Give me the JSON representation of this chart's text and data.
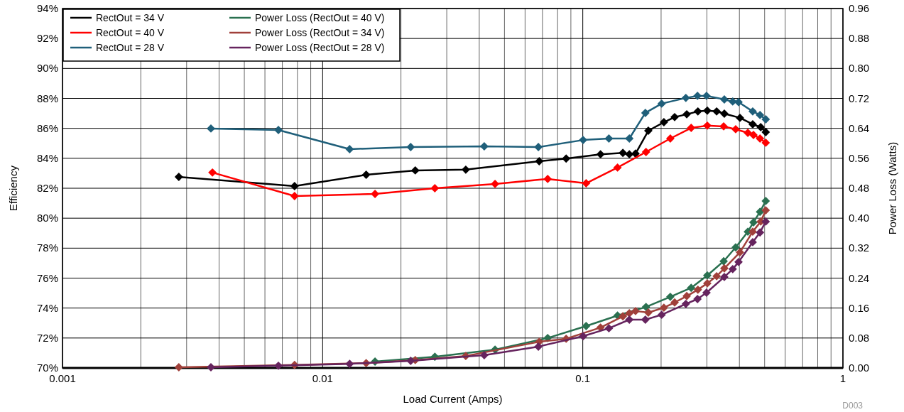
{
  "chart_data": {
    "type": "line",
    "xlabel": "Load Current (Amps)",
    "ylabel": "Efficiency",
    "y2label": "Power Loss (Watts)",
    "log": "x",
    "grid": true,
    "marker": "diamond",
    "line_style": "solid",
    "legend": "top left",
    "xlim": [
      0.001,
      1
    ],
    "xticks": [
      0.001,
      0.01,
      0.1,
      1
    ],
    "ylim": [
      70,
      94
    ],
    "yticks": [
      {
        "value": 70,
        "label": "70%"
      },
      {
        "value": 72,
        "label": "72%"
      },
      {
        "value": 74,
        "label": "74%"
      },
      {
        "value": 76,
        "label": "76%"
      },
      {
        "value": 78,
        "label": "78%"
      },
      {
        "value": 80,
        "label": "80%"
      },
      {
        "value": 82,
        "label": "82%"
      },
      {
        "value": 84,
        "label": "84%"
      },
      {
        "value": 86,
        "label": "86%"
      },
      {
        "value": 88,
        "label": "88%"
      },
      {
        "value": 90,
        "label": "90%"
      },
      {
        "value": 92,
        "label": "92%"
      },
      {
        "value": 94,
        "label": "94%"
      }
    ],
    "y2lim": [
      0,
      0.96
    ],
    "y2ticks": [
      {
        "value": 0,
        "label": "0.00"
      },
      {
        "value": 0.08,
        "label": "0.08"
      },
      {
        "value": 0.16,
        "label": "0.16"
      },
      {
        "value": 0.24,
        "label": "0.24"
      },
      {
        "value": 0.32,
        "label": "0.32"
      },
      {
        "value": 0.4,
        "label": "0.40"
      },
      {
        "value": 0.48,
        "label": "0.48"
      },
      {
        "value": 0.56,
        "label": "0.56"
      },
      {
        "value": 0.64,
        "label": "0.64"
      },
      {
        "value": 0.72,
        "label": "0.72"
      },
      {
        "value": 0.8,
        "label": "0.80"
      },
      {
        "value": 0.88,
        "label": "0.88"
      },
      {
        "value": 0.96,
        "label": "0.96"
      }
    ],
    "annotations": [
      "D003"
    ],
    "series": [
      {
        "name": "RectOut = 34 V",
        "color": "#000000",
        "x": [
          0.0028,
          0.0078,
          0.0147,
          0.0227,
          0.0355,
          0.068,
          0.0863,
          0.117,
          0.1426,
          0.151,
          0.1595,
          0.1786,
          0.205,
          0.2255,
          0.251,
          0.277,
          0.301,
          0.327,
          0.35,
          0.402,
          0.45,
          0.483,
          0.505
        ],
        "values": [
          82.76,
          82.14,
          82.9,
          83.19,
          83.24,
          83.8,
          83.98,
          84.27,
          84.36,
          84.27,
          84.31,
          85.84,
          86.41,
          86.75,
          86.94,
          87.13,
          87.18,
          87.13,
          86.98,
          86.7,
          86.27,
          86.08,
          85.75
        ]
      },
      {
        "name": "RectOut = 40 V",
        "color": "#ff0000",
        "x": [
          0.00377,
          0.0078,
          0.0159,
          0.027,
          0.046,
          0.0733,
          0.103,
          0.136,
          0.175,
          0.217,
          0.261,
          0.301,
          0.348,
          0.387,
          0.431,
          0.453,
          0.48,
          0.505
        ],
        "values": [
          83.05,
          81.48,
          81.62,
          82.0,
          82.29,
          82.62,
          82.33,
          83.38,
          84.42,
          85.32,
          86.03,
          86.18,
          86.13,
          85.94,
          85.7,
          85.56,
          85.32,
          85.04
        ]
      },
      {
        "name": "RectOut = 28 V",
        "color": "#1f5f7a",
        "x": [
          0.00372,
          0.00676,
          0.0127,
          0.0218,
          0.0418,
          0.0675,
          0.1003,
          0.126,
          0.151,
          0.174,
          0.201,
          0.249,
          0.276,
          0.299,
          0.35,
          0.377,
          0.397,
          0.45,
          0.48,
          0.505
        ],
        "values": [
          85.99,
          85.89,
          84.61,
          84.75,
          84.8,
          84.75,
          85.22,
          85.32,
          85.32,
          87.03,
          87.65,
          88.03,
          88.17,
          88.17,
          87.93,
          87.79,
          87.75,
          87.13,
          86.89,
          86.6
        ]
      },
      {
        "name": "Power Loss (RectOut = 40 V)",
        "color": "#2a7050",
        "axis": "y2",
        "x": [
          0.0159,
          0.027,
          0.046,
          0.0733,
          0.103,
          0.136,
          0.175,
          0.217,
          0.261,
          0.301,
          0.348,
          0.387,
          0.431,
          0.453,
          0.48,
          0.505
        ],
        "values": [
          0.017,
          0.03,
          0.049,
          0.08,
          0.112,
          0.14,
          0.163,
          0.19,
          0.214,
          0.247,
          0.285,
          0.322,
          0.364,
          0.389,
          0.417,
          0.446
        ]
      },
      {
        "name": "Power Loss (RectOut = 34 V)",
        "color": "#a0403a",
        "axis": "y2",
        "x": [
          0.0028,
          0.0078,
          0.0147,
          0.0227,
          0.0355,
          0.068,
          0.0863,
          0.117,
          0.1426,
          0.151,
          0.1595,
          0.1786,
          0.205,
          0.2255,
          0.251,
          0.277,
          0.301,
          0.327,
          0.35,
          0.402,
          0.45,
          0.483,
          0.505
        ],
        "values": [
          0.002,
          0.008,
          0.013,
          0.021,
          0.032,
          0.07,
          0.078,
          0.108,
          0.138,
          0.146,
          0.152,
          0.148,
          0.161,
          0.175,
          0.192,
          0.209,
          0.226,
          0.245,
          0.266,
          0.309,
          0.364,
          0.391,
          0.421
        ]
      },
      {
        "name": "Power Loss (RectOut = 28 V)",
        "color": "#66245e",
        "axis": "y2",
        "x": [
          0.00372,
          0.00676,
          0.0127,
          0.0218,
          0.0418,
          0.0675,
          0.1003,
          0.126,
          0.151,
          0.174,
          0.201,
          0.249,
          0.276,
          0.299,
          0.35,
          0.377,
          0.397,
          0.45,
          0.48,
          0.505
        ],
        "values": [
          0.002,
          0.006,
          0.011,
          0.019,
          0.034,
          0.057,
          0.085,
          0.106,
          0.129,
          0.129,
          0.142,
          0.171,
          0.184,
          0.201,
          0.243,
          0.264,
          0.283,
          0.336,
          0.362,
          0.391
        ]
      }
    ]
  }
}
